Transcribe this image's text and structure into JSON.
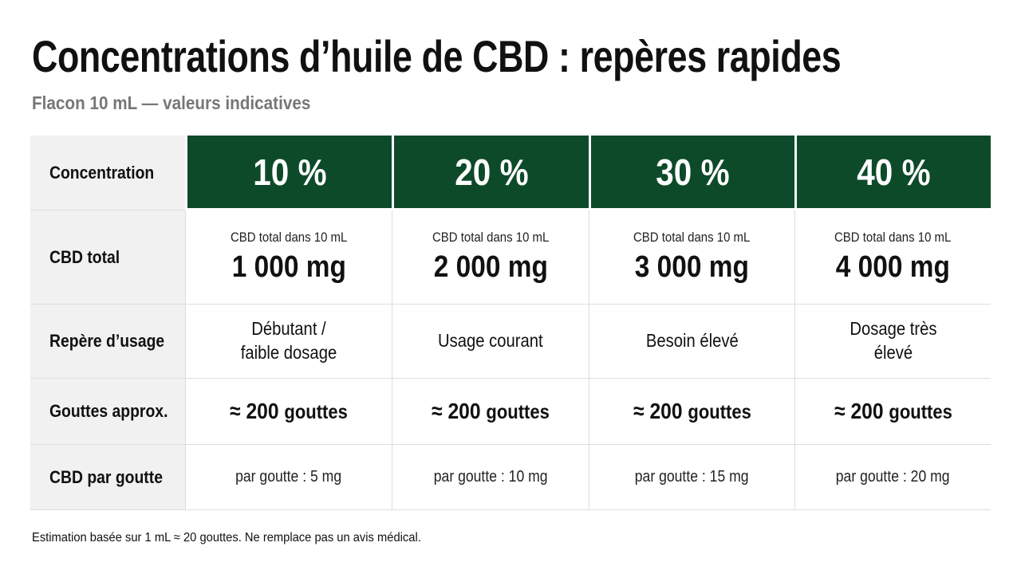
{
  "header": {
    "title": "Concentrations d’huile de CBD : repères rapides",
    "subtitle": "Flacon 10 mL — valeurs indicatives"
  },
  "table": {
    "columns": [
      "Concentration",
      "10 %",
      "20 %",
      "30 %",
      "40 %"
    ],
    "rows": [
      {
        "label": "CBD total",
        "cells": [
          {
            "caption": "CBD total dans 10 mL",
            "value": "1 000 mg"
          },
          {
            "caption": "CBD total dans 10 mL",
            "value": "2 000 mg"
          },
          {
            "caption": "CBD total dans 10 mL",
            "value": "3 000 mg"
          },
          {
            "caption": "CBD total dans 10 mL",
            "value": "4 000 mg"
          }
        ]
      },
      {
        "label": "Repère d’usage",
        "cells": [
          "Débutant / faible dosage",
          "Usage courant",
          "Besoin élevé",
          "Dosage très élevé"
        ]
      },
      {
        "label": "Gouttes approx.",
        "cells": [
          {
            "approx": "≈ 200",
            "unit": "gouttes"
          },
          {
            "approx": "≈ 200",
            "unit": "gouttes"
          },
          {
            "approx": "≈ 200",
            "unit": "gouttes"
          },
          {
            "approx": "≈ 200",
            "unit": "gouttes"
          }
        ]
      },
      {
        "label": "CBD par goutte",
        "cells": [
          "par goutte :  5 mg",
          "par goutte :  10 mg",
          "par goutte :  15 mg",
          "par goutte :  20 mg"
        ]
      }
    ]
  },
  "footer": {
    "note": "Estimation basée sur 1 mL ≈ 20 gouttes. Ne remplace pas un avis médical."
  }
}
